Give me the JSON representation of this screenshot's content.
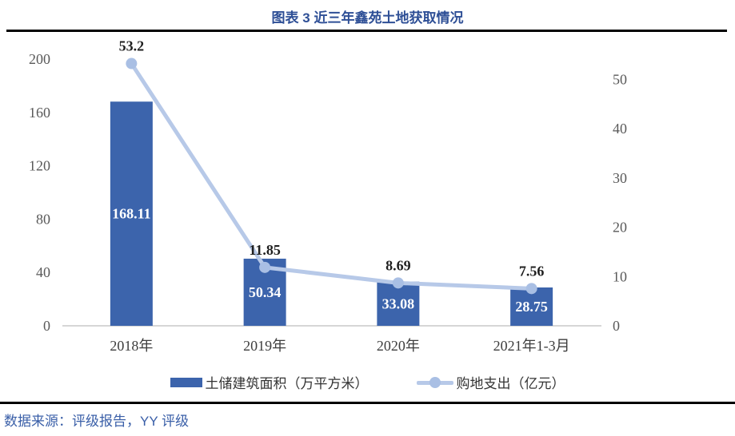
{
  "header": {
    "title": "图表 3 近三年鑫苑土地获取情况"
  },
  "footer": {
    "source": "数据来源：评级报告，YY 评级"
  },
  "colors": {
    "bar": "#3C64AC",
    "line": "#B7C9E8",
    "marker": "#A9BFE4",
    "bar_label": "#FFFFFF",
    "line_label": "#1F1F1F",
    "axis_text": "#595959",
    "category_text": "#3D3D3D",
    "axis_line": "#D6D6D6",
    "title_text": "#2E4F96",
    "source_text": "#3A5FA8",
    "rule": "#000000"
  },
  "chart_data": {
    "type": "bar",
    "subtype": "bar+line combo, dual axis",
    "title": "图表 3 近三年鑫苑土地获取情况",
    "categories": [
      "2018年",
      "2019年",
      "2020年",
      "2021年1-3月"
    ],
    "series": [
      {
        "name": "土储建筑面积（万平方米）",
        "type": "bar",
        "axis": "left",
        "values": [
          168.11,
          50.34,
          33.08,
          28.75
        ],
        "labels": [
          "168.11",
          "50.34",
          "33.08",
          "28.75"
        ]
      },
      {
        "name": "购地支出（亿元）",
        "type": "line",
        "axis": "right",
        "values": [
          53.2,
          11.85,
          8.69,
          7.56
        ],
        "labels": [
          "53.2",
          "11.85",
          "8.69",
          "7.56"
        ]
      }
    ],
    "left_axis": {
      "ticks": [
        0,
        40,
        80,
        120,
        160,
        200
      ],
      "min": 0,
      "max": 200
    },
    "right_axis": {
      "ticks": [
        0,
        10,
        20,
        30,
        40,
        50
      ],
      "min": 0,
      "max": 54.1
    },
    "grid": false,
    "legend_position": "bottom",
    "xlabel": "",
    "ylabel_left": "土储建筑面积（万平方米）",
    "ylabel_right": "购地支出（亿元）"
  }
}
